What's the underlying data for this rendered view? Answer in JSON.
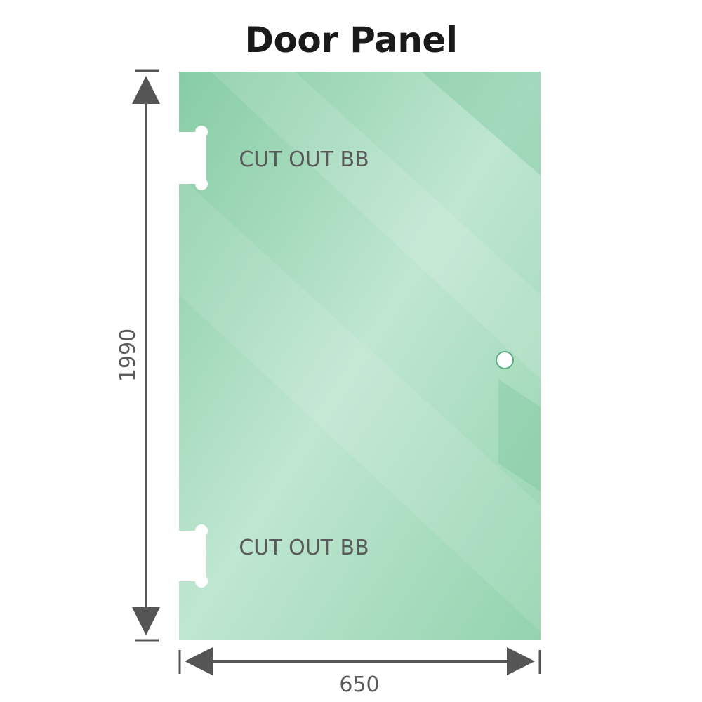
{
  "title": "Door Panel",
  "panel": {
    "color": "#8ccfa8",
    "highlight_color": "#c2e8d4",
    "cutouts": [
      {
        "label": "CUT OUT BB",
        "position": "top"
      },
      {
        "label": "CUT OUT BB",
        "position": "bottom"
      }
    ],
    "handle_hole": true
  },
  "dimensions": {
    "height": "1990",
    "width": "650",
    "line_color": "#555555"
  }
}
